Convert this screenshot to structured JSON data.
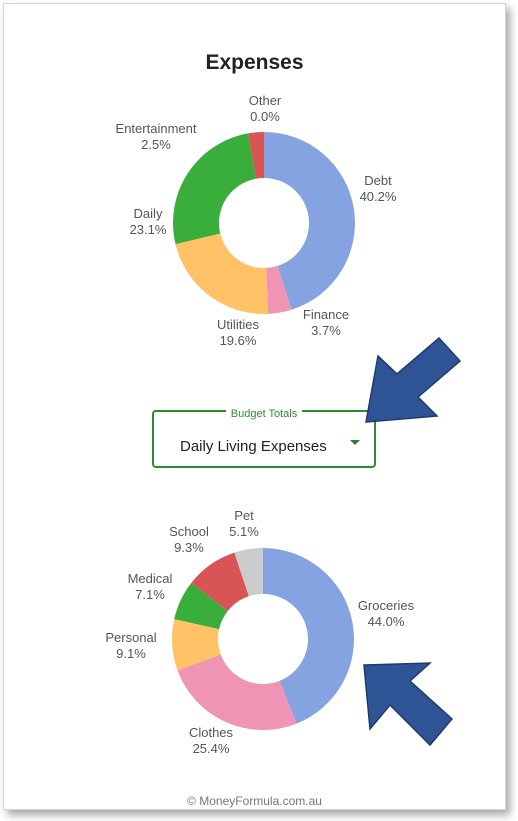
{
  "chart_data": [
    {
      "type": "pie",
      "title": "Expenses",
      "categories": [
        "Debt",
        "Finance",
        "Utilities",
        "Daily",
        "Entertainment",
        "Other"
      ],
      "values": [
        40.2,
        3.7,
        19.6,
        23.1,
        2.5,
        0.0
      ],
      "value_labels": [
        "40.2%",
        "3.7%",
        "19.6%",
        "23.1%",
        "2.5%",
        "0.0%"
      ],
      "colors": [
        "#85a3e0",
        "#ef94b4",
        "#ffc266",
        "#3aae3a",
        "#d95454",
        "#cccccc"
      ],
      "donut": true
    },
    {
      "type": "pie",
      "title": "",
      "categories": [
        "Groceries",
        "Clothes",
        "Personal",
        "Medical",
        "School",
        "Pet"
      ],
      "values": [
        44.0,
        25.4,
        9.1,
        7.1,
        9.3,
        5.1
      ],
      "value_labels": [
        "44.0%",
        "25.4%",
        "9.1%",
        "7.1%",
        "9.3%",
        "5.1%"
      ],
      "colors": [
        "#85a3e0",
        "#ef94b4",
        "#ffc266",
        "#3aae3a",
        "#d95454",
        "#cccccc"
      ],
      "donut": true
    }
  ],
  "budget_select": {
    "legend": "Budget Totals",
    "value": "Daily Living Expenses",
    "accent_color": "#2e8b2e"
  },
  "footer": {
    "text": "© MoneyFormula.com.au"
  },
  "arrow_color": "#2f5496"
}
